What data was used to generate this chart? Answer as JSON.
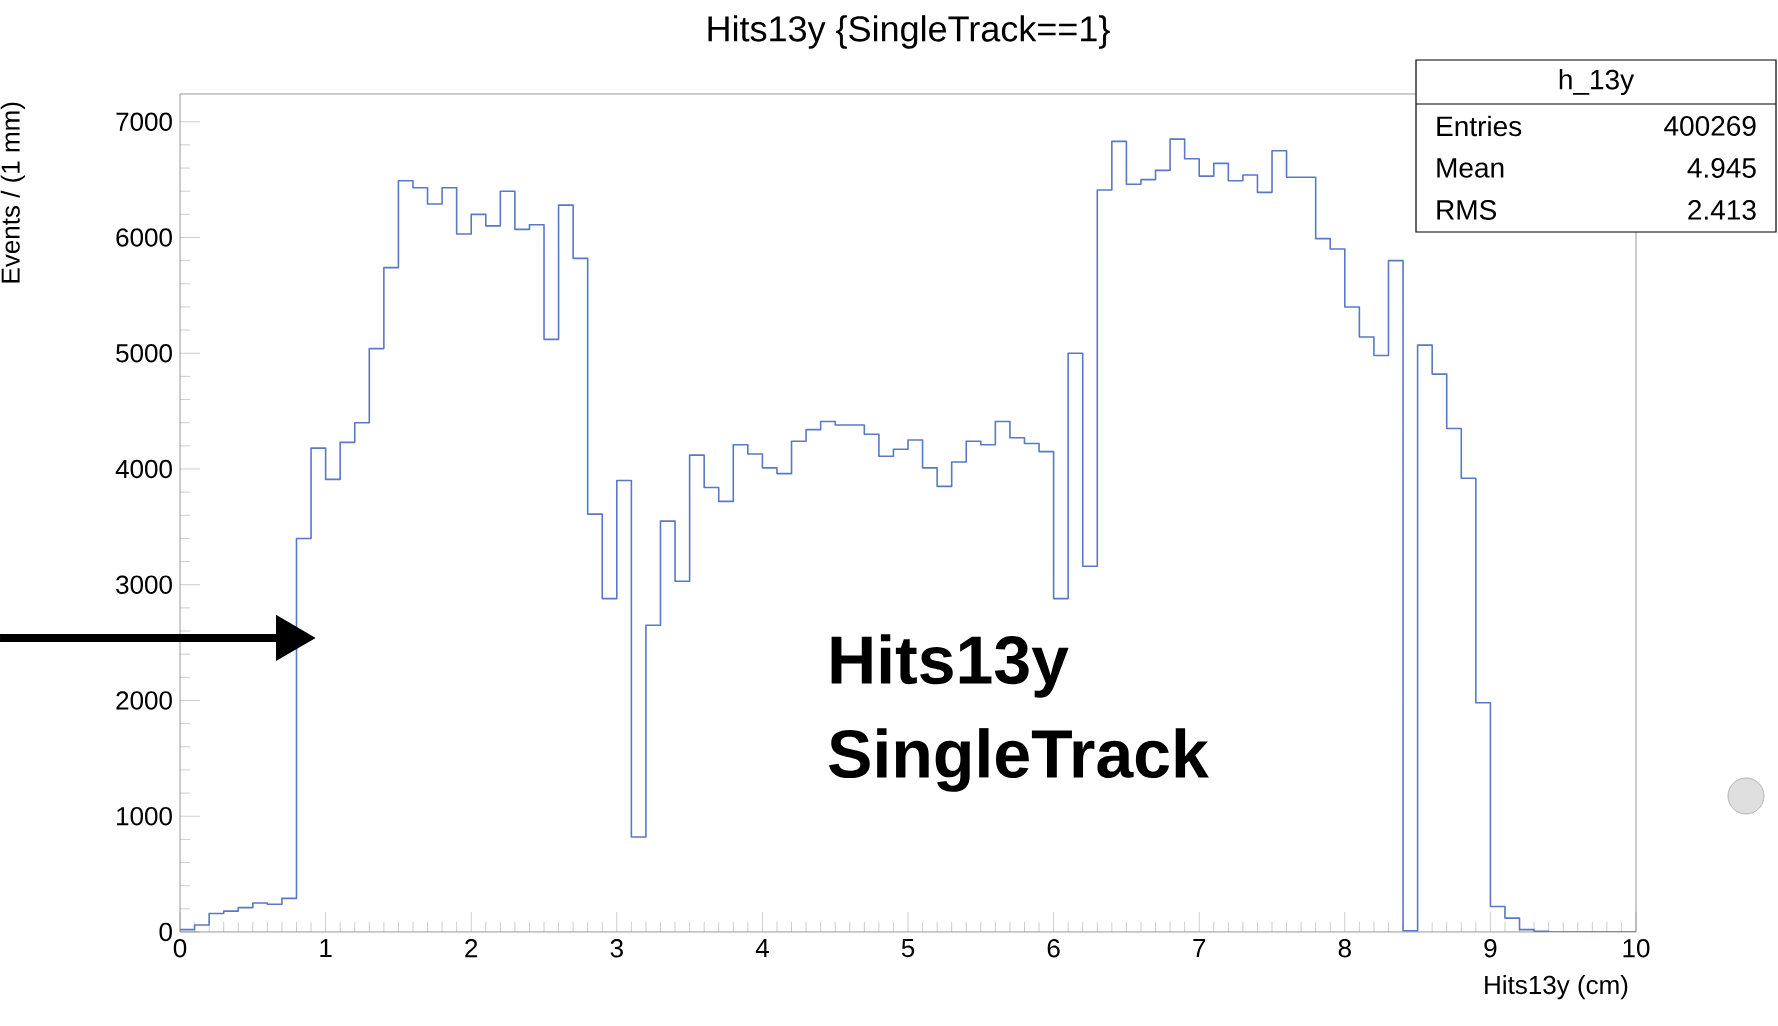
{
  "chart_data": {
    "type": "histogram",
    "title": "Hits13y  {SingleTrack==1}",
    "xlabel": "Hits13y (cm)",
    "ylabel": "Events / (1 mm)",
    "color": "#5a78c8",
    "bins": [
      0,
      0.1,
      0.2,
      0.3,
      0.4,
      0.5,
      0.6,
      0.7,
      0.8,
      0.9,
      1,
      1.1,
      1.2,
      1.3,
      1.4,
      1.5,
      1.6,
      1.7,
      1.8,
      1.9,
      2,
      2.1,
      2.2,
      2.3,
      2.4,
      2.5,
      2.6,
      2.7,
      2.8,
      2.9,
      3,
      3.1,
      3.2,
      3.3,
      3.4,
      3.5,
      3.6,
      3.7,
      3.8,
      3.9,
      4,
      4.1,
      4.2,
      4.3,
      4.4,
      4.5,
      4.6,
      4.7,
      4.8,
      4.9,
      5,
      5.1,
      5.2,
      5.3,
      5.4,
      5.5,
      5.6,
      5.7,
      5.8,
      5.9,
      6,
      6.1,
      6.2,
      6.3,
      6.4,
      6.5,
      6.6,
      6.7,
      6.8,
      6.9,
      7,
      7.1,
      7.2,
      7.3,
      7.4,
      7.5,
      7.6,
      7.7,
      7.8,
      7.9,
      8,
      8.1,
      8.2,
      8.3,
      8.4,
      8.5,
      8.6,
      8.7,
      8.8,
      8.9,
      9,
      9.1,
      9.2,
      9.3,
      9.4,
      9.5,
      9.6,
      9.7,
      9.8,
      9.9,
      10
    ],
    "values": [
      20,
      60,
      160,
      180,
      210,
      250,
      240,
      290,
      3400,
      4180,
      3910,
      4230,
      4400,
      5040,
      5740,
      6490,
      6430,
      6290,
      6430,
      6030,
      6200,
      6100,
      6400,
      6070,
      6110,
      5120,
      6280,
      5820,
      3610,
      2880,
      3900,
      820,
      2650,
      3550,
      3030,
      4120,
      3840,
      3720,
      4210,
      4130,
      4010,
      3960,
      4240,
      4340,
      4410,
      4380,
      4380,
      4300,
      4110,
      4170,
      4250,
      4010,
      3850,
      4060,
      4240,
      4210,
      4410,
      4270,
      4220,
      4150,
      2880,
      5000,
      3160,
      6410,
      6830,
      6460,
      6500,
      6580,
      6850,
      6680,
      6530,
      6640,
      6490,
      6540,
      6390,
      6750,
      6520,
      6520,
      5990,
      5900,
      5400,
      5140,
      4980,
      5800,
      10,
      5070,
      4820,
      4350,
      3920,
      1980,
      220,
      120,
      20,
      5,
      0,
      0,
      0,
      0,
      0,
      0
    ],
    "xlim": [
      0,
      10
    ],
    "ylim": [
      0,
      7240
    ],
    "xticks": [
      0,
      1,
      2,
      3,
      4,
      5,
      6,
      7,
      8,
      9,
      10
    ],
    "yticks": [
      0,
      1000,
      2000,
      3000,
      4000,
      5000,
      6000,
      7000
    ],
    "annotations": [
      "h_13y",
      "Entries",
      "400269",
      "Mean",
      "4.945",
      "RMS",
      "2.413",
      "Hits13y",
      "SingleTrack"
    ]
  }
}
